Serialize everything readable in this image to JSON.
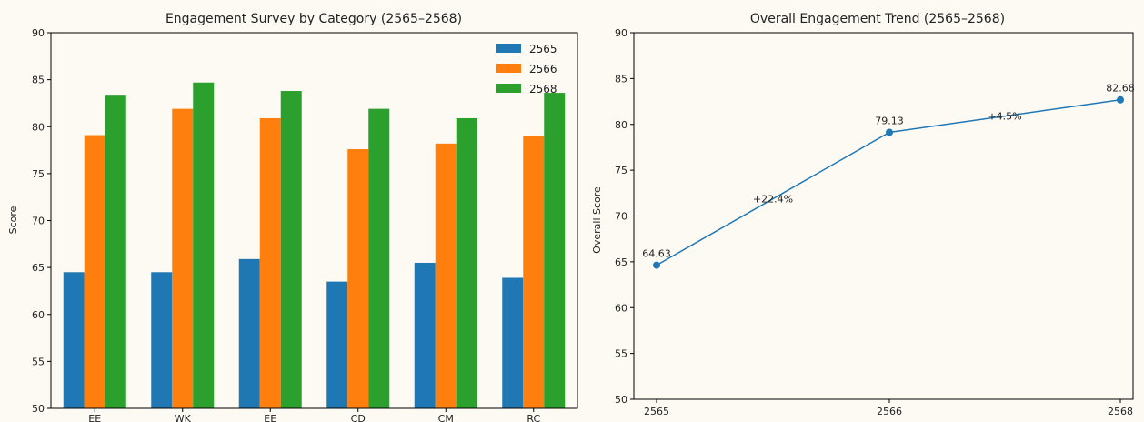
{
  "chart_data": [
    {
      "type": "bar",
      "title": "Engagement Survey by Category (2565–2568)",
      "xlabel": "",
      "ylabel": "Score",
      "ylim": [
        50,
        90
      ],
      "yticks": [
        50,
        55,
        60,
        65,
        70,
        75,
        80,
        85,
        90
      ],
      "categories": [
        "EE",
        "WK",
        "EE",
        "CD",
        "CM",
        "RC"
      ],
      "series": [
        {
          "name": "2565",
          "color": "#1f77b4",
          "values": [
            64.5,
            64.5,
            65.9,
            63.5,
            65.5,
            63.9
          ]
        },
        {
          "name": "2566",
          "color": "#ff7f0e",
          "values": [
            79.1,
            81.9,
            80.9,
            77.6,
            78.2,
            79.0
          ]
        },
        {
          "name": "2568",
          "color": "#2ca02c",
          "values": [
            83.3,
            84.7,
            83.8,
            81.9,
            80.9,
            83.6
          ]
        }
      ],
      "legend": "top-right",
      "grid": false
    },
    {
      "type": "line",
      "title": "Overall Engagement Trend (2565–2568)",
      "xlabel": "",
      "ylabel": "Overall Score",
      "ylim": [
        50,
        90
      ],
      "yticks": [
        50,
        55,
        60,
        65,
        70,
        75,
        80,
        85,
        90
      ],
      "x": [
        "2565",
        "2566",
        "2568"
      ],
      "series": [
        {
          "color": "#1f77b4",
          "values": [
            64.63,
            79.13,
            82.68
          ]
        }
      ],
      "point_labels": [
        "64.63",
        "79.13",
        "82.68"
      ],
      "change_labels": [
        "+22.4%",
        "+4.5%"
      ],
      "grid": false
    }
  ]
}
